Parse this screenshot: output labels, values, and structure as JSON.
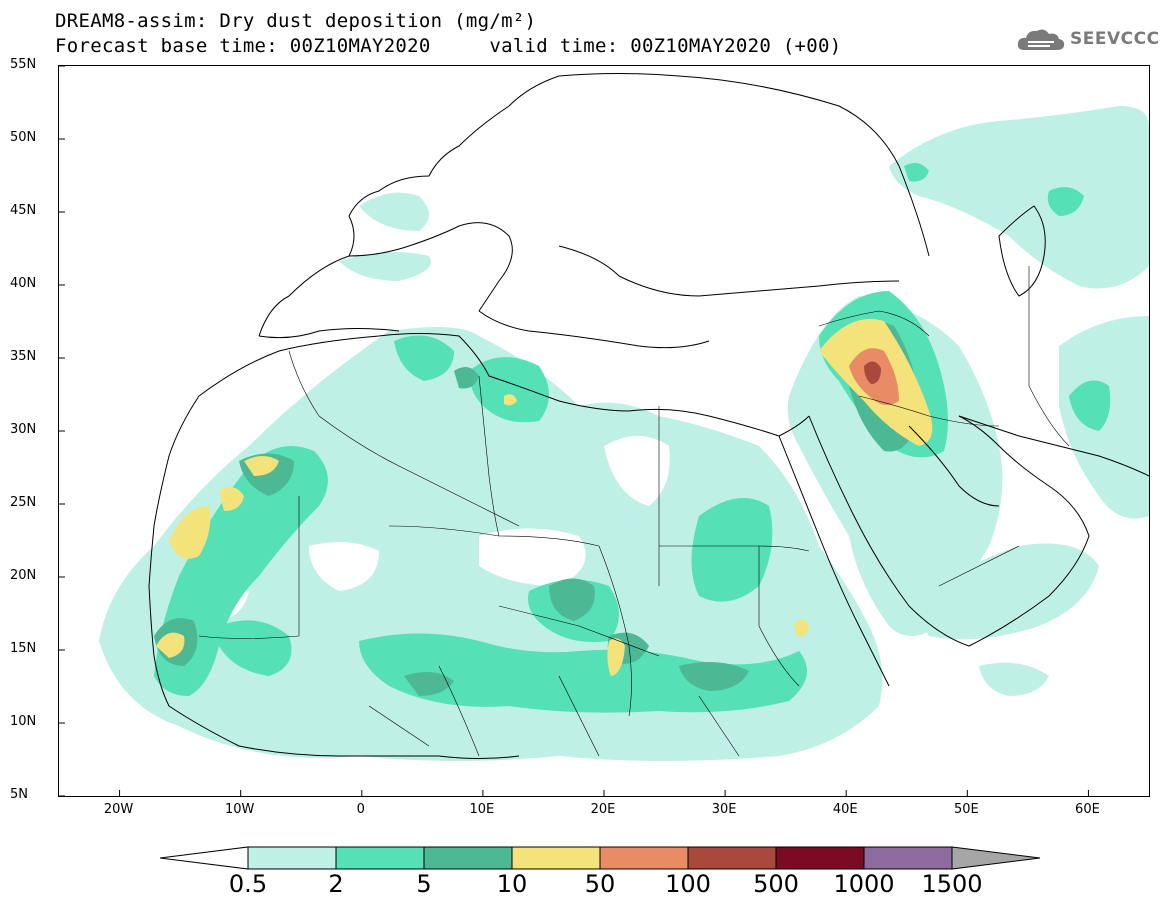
{
  "header": {
    "title_line1": "DREAM8-assim: Dry dust deposition (mg/m²)",
    "title_line2": "Forecast base time: 00Z10MAY2020     valid time: 00Z10MAY2020 (+00)",
    "logo_text": "SEEVCCC"
  },
  "map": {
    "lat_labels": [
      "55N",
      "50N",
      "45N",
      "40N",
      "35N",
      "30N",
      "25N",
      "20N",
      "15N",
      "10N",
      "5N"
    ],
    "lon_labels": [
      "20W",
      "10W",
      "0",
      "10E",
      "20E",
      "30E",
      "40E",
      "50E",
      "60E"
    ],
    "extent": {
      "lon_min": -25,
      "lon_max": 65,
      "lat_min": 5,
      "lat_max": 55
    }
  },
  "colorbar": {
    "labels": [
      "0.5",
      "2",
      "5",
      "10",
      "50",
      "100",
      "500",
      "1000",
      "1500"
    ],
    "colors": [
      "#bff0e6",
      "#55e0b5",
      "#4db894",
      "#f3e37a",
      "#e98c66",
      "#a9493e",
      "#7b0a24",
      "#8d6b9e"
    ],
    "under_color": "#ffffff",
    "over_color": "#a6a6a6"
  },
  "colors": {
    "coast": "#000000",
    "background": "#ffffff"
  }
}
